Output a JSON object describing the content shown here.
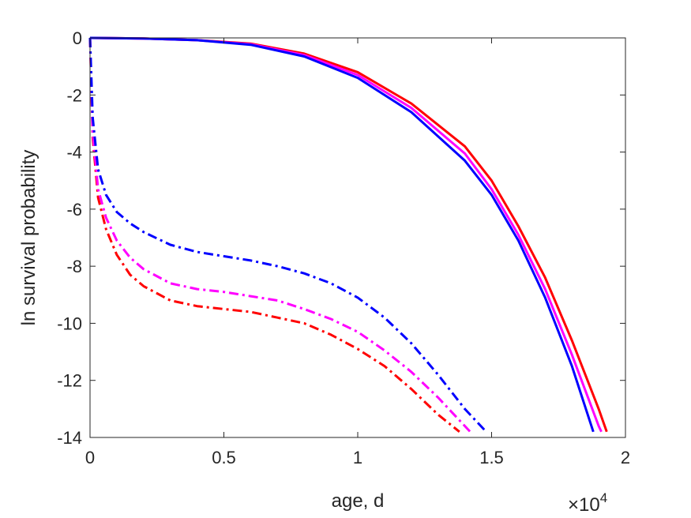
{
  "chart_data": {
    "type": "line",
    "title": "",
    "xlabel": "age, d",
    "ylabel": "ln survival probability",
    "x_exponent_base": "×10",
    "x_exponent_power": "4",
    "xlim": [
      0,
      20000
    ],
    "ylim": [
      -14,
      0
    ],
    "x_ticks": [
      0,
      5000,
      10000,
      15000,
      20000
    ],
    "x_tick_labels": [
      "0",
      "0.5",
      "1",
      "1.5",
      "2"
    ],
    "y_ticks": [
      0,
      -2,
      -4,
      -6,
      -8,
      -10,
      -12,
      -14
    ],
    "y_tick_labels": [
      "0",
      "-2",
      "-4",
      "-6",
      "-8",
      "-10",
      "-12",
      "-14"
    ],
    "grid": false,
    "legend": "none",
    "series": [
      {
        "color": "#ff0000",
        "style": "solid",
        "x": [
          0,
          2000,
          4000,
          6000,
          8000,
          10000,
          12000,
          14000,
          15000,
          16000,
          17000,
          18000,
          19000,
          19300
        ],
        "y": [
          0,
          -0.02,
          -0.08,
          -0.2,
          -0.55,
          -1.2,
          -2.3,
          -3.8,
          -5.0,
          -6.6,
          -8.4,
          -10.6,
          -13.0,
          -13.8
        ]
      },
      {
        "color": "#ff00ff",
        "style": "solid",
        "x": [
          0,
          2000,
          4000,
          6000,
          8000,
          10000,
          12000,
          14000,
          15000,
          16000,
          17000,
          18000,
          19000,
          19100
        ],
        "y": [
          0,
          -0.02,
          -0.08,
          -0.22,
          -0.6,
          -1.3,
          -2.45,
          -4.05,
          -5.3,
          -6.9,
          -8.8,
          -11.1,
          -13.6,
          -13.8
        ]
      },
      {
        "color": "#0000ff",
        "style": "solid",
        "x": [
          0,
          2000,
          4000,
          6000,
          8000,
          10000,
          12000,
          14000,
          15000,
          16000,
          17000,
          18000,
          18800
        ],
        "y": [
          0,
          -0.02,
          -0.08,
          -0.24,
          -0.65,
          -1.4,
          -2.6,
          -4.3,
          -5.5,
          -7.1,
          -9.1,
          -11.5,
          -13.8
        ]
      },
      {
        "color": "#ff0000",
        "style": "dashdot",
        "x": [
          0,
          100,
          300,
          600,
          1000,
          1500,
          2000,
          3000,
          4000,
          5000,
          6000,
          7000,
          8000,
          9000,
          10000,
          11000,
          12000,
          13000,
          13800
        ],
        "y": [
          0,
          -3.5,
          -5.6,
          -6.7,
          -7.6,
          -8.3,
          -8.7,
          -9.2,
          -9.4,
          -9.5,
          -9.6,
          -9.8,
          -10.0,
          -10.4,
          -10.9,
          -11.5,
          -12.3,
          -13.2,
          -13.8
        ]
      },
      {
        "color": "#ff00ff",
        "style": "dashdot",
        "x": [
          0,
          100,
          300,
          600,
          1000,
          1500,
          2000,
          3000,
          4000,
          5000,
          6000,
          7000,
          8000,
          9000,
          10000,
          11000,
          12000,
          13000,
          14200
        ],
        "y": [
          0,
          -3.3,
          -5.3,
          -6.3,
          -7.1,
          -7.7,
          -8.1,
          -8.6,
          -8.8,
          -8.9,
          -9.05,
          -9.2,
          -9.5,
          -9.85,
          -10.3,
          -10.95,
          -11.7,
          -12.6,
          -13.8
        ]
      },
      {
        "color": "#0000ff",
        "style": "dashdot",
        "x": [
          0,
          100,
          300,
          600,
          1000,
          1500,
          2000,
          3000,
          4000,
          5000,
          6000,
          7000,
          8000,
          9000,
          10000,
          11000,
          12000,
          13000,
          14000,
          14800
        ],
        "y": [
          0,
          -2.8,
          -4.6,
          -5.5,
          -6.1,
          -6.5,
          -6.8,
          -7.25,
          -7.5,
          -7.65,
          -7.8,
          -8.0,
          -8.25,
          -8.6,
          -9.1,
          -9.8,
          -10.7,
          -11.8,
          -13.0,
          -13.8
        ]
      }
    ]
  }
}
